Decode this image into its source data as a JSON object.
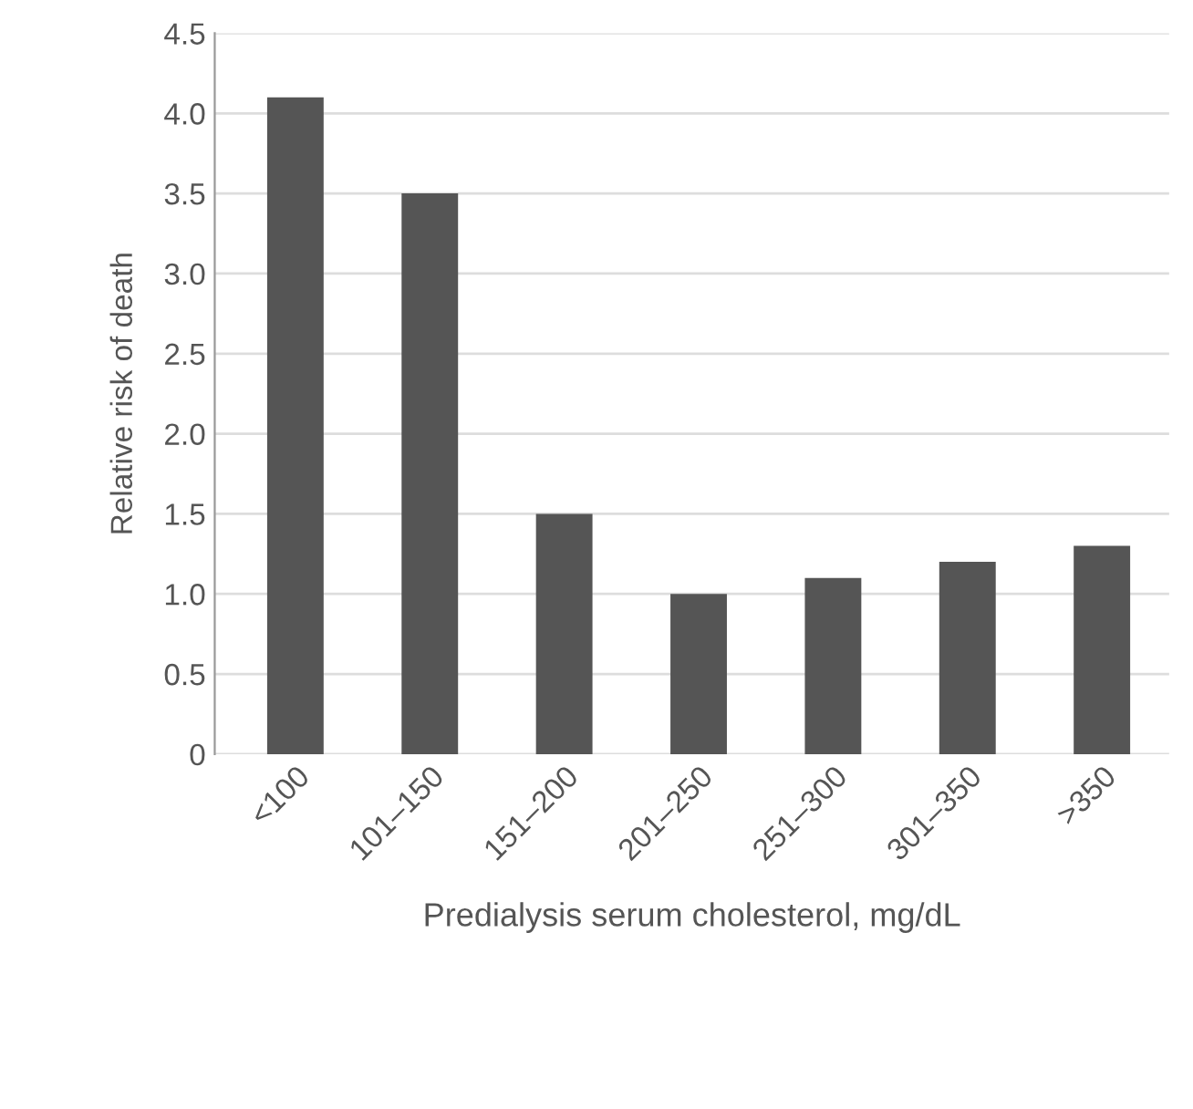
{
  "chart_data": {
    "type": "bar",
    "categories": [
      "<100",
      "101–150",
      "151–200",
      "201–250",
      "251–300",
      "301–350",
      ">350"
    ],
    "values": [
      4.1,
      3.5,
      1.5,
      1.0,
      1.1,
      1.2,
      1.3
    ],
    "color": "#555555",
    "ylabel": "Relative risk of death",
    "xlabel": "Predialysis serum cholesterol, mg/dL",
    "ylim": [
      0,
      4.5
    ],
    "yticks": [
      {
        "value": 0,
        "label": "0"
      },
      {
        "value": 0.5,
        "label": "0.5"
      },
      {
        "value": 1.0,
        "label": "1.0"
      },
      {
        "value": 1.5,
        "label": "1.5"
      },
      {
        "value": 2.0,
        "label": "2.0"
      },
      {
        "value": 2.5,
        "label": "2.5"
      },
      {
        "value": 3.0,
        "label": "3.0"
      },
      {
        "value": 3.5,
        "label": "3.5"
      },
      {
        "value": 4.0,
        "label": "4.0"
      },
      {
        "value": 4.5,
        "label": "4.5"
      }
    ],
    "grid": "y"
  }
}
